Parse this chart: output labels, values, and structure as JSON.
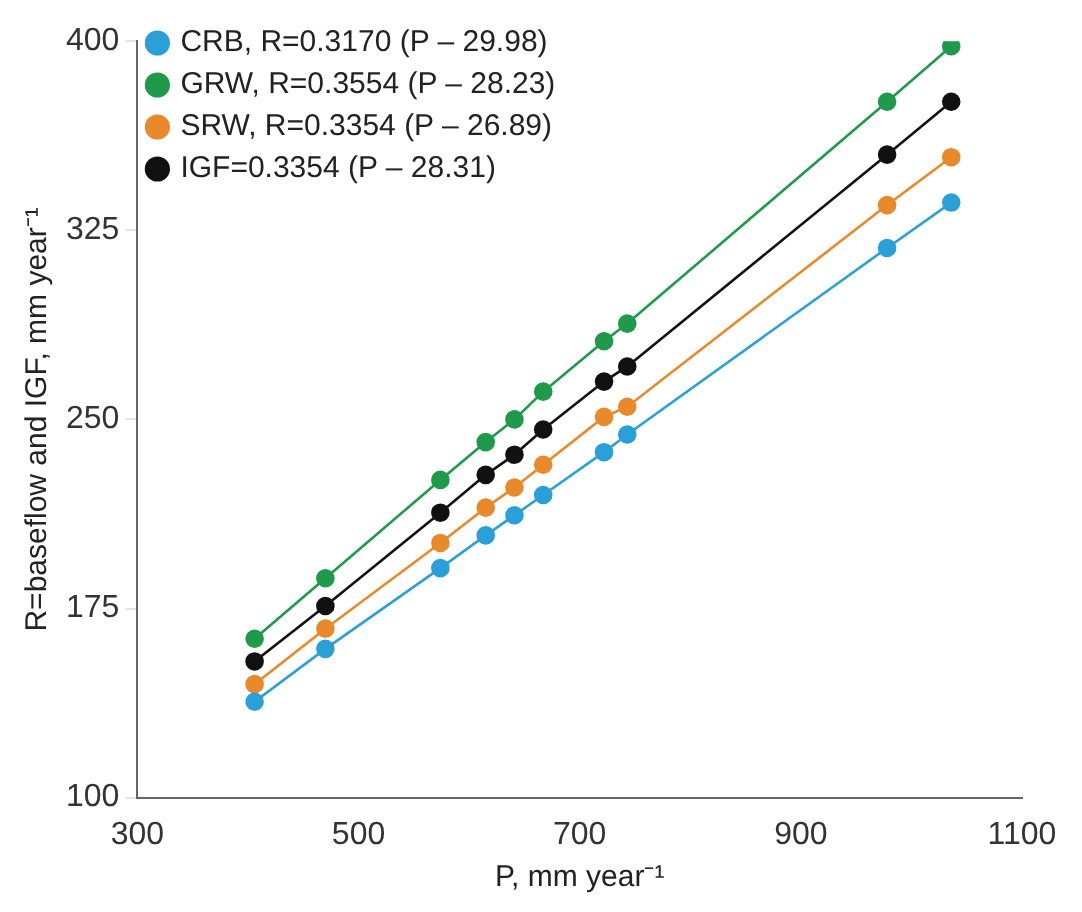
{
  "chart_data": {
    "type": "line",
    "xlabel": "P, mm year⁻¹",
    "ylabel": "R=baseflow and IGF, mm year⁻¹",
    "x": [
      406,
      470,
      574,
      615,
      641,
      667,
      722,
      743,
      978,
      1036
    ],
    "series": [
      {
        "name": "CRB, R=0.3170 (P – 29.98)",
        "color": "#2a9fd8",
        "values": [
          138,
          159,
          191,
          204,
          212,
          220,
          237,
          244,
          318,
          336
        ]
      },
      {
        "name": "GRW, R=0.3554 (P – 28.23)",
        "color": "#1e9a4a",
        "values": [
          163,
          187,
          226,
          241,
          250,
          261,
          281,
          288,
          376,
          398
        ]
      },
      {
        "name": "SRW, R=0.3354 (P – 26.89)",
        "color": "#e8892b",
        "values": [
          145,
          167,
          201,
          215,
          223,
          232,
          251,
          255,
          335,
          354
        ]
      },
      {
        "name": "IGF=0.3354 (P – 28.31)",
        "color": "#111111",
        "values": [
          154,
          176,
          213,
          228,
          236,
          246,
          265,
          271,
          355,
          376
        ]
      }
    ],
    "xlim": [
      300,
      1100
    ],
    "xticks": [
      300,
      500,
      700,
      900,
      1100
    ],
    "ylim": [
      100,
      400
    ],
    "yticks": [
      100,
      175,
      250,
      325,
      400
    ],
    "grid": false,
    "legend": "top left",
    "marker": "circle",
    "line_style": "solid"
  }
}
